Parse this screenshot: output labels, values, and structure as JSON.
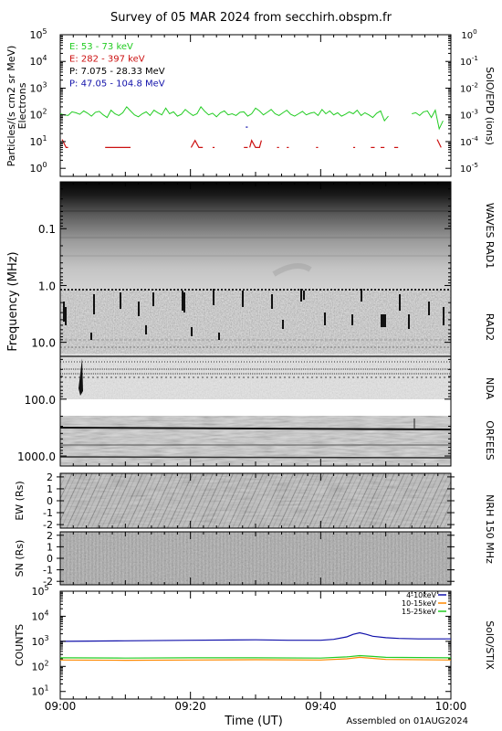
{
  "title": "Survey of 05 MAR 2024 from secchirh.obspm.fr",
  "footer": "Assembled on 01AUG2024",
  "chart_data": [
    {
      "type": "line",
      "panel": "SolO/EPD",
      "right_label": "SolO/EPD (ions)",
      "ylabel": "Particles/(s cm2 sr MeV)",
      "ylabel2": "Electrons",
      "ylog": true,
      "ylim": [
        0.5,
        100000
      ],
      "yticks": [
        "10^0",
        "10^1",
        "10^2",
        "10^3",
        "10^4",
        "10^5"
      ],
      "y2ticks": [
        "10^-5",
        "10^-4",
        "10^-3",
        "10^-2",
        "10^-1",
        "10^0"
      ],
      "legend": [
        {
          "text": "E: 53 - 73 keV",
          "color": "#22cc22"
        },
        {
          "text": "E: 282 - 397 keV",
          "color": "#cc1111"
        },
        {
          "text": "P: 7.075 - 28.33 MeV",
          "color": "#000000"
        },
        {
          "text": "P: 47.05 - 104.8 MeV",
          "color": "#1111aa"
        }
      ],
      "series": [
        {
          "name": "E: 53 - 73 keV",
          "color": "#22cc22",
          "x_start": 0,
          "x_step": 0.5,
          "values": [
            110,
            100,
            95,
            130,
            120,
            105,
            140,
            115,
            90,
            125,
            135,
            100,
            80,
            150,
            110,
            95,
            120,
            200,
            140,
            100,
            85,
            110,
            130,
            95,
            150,
            120,
            100,
            180,
            110,
            130,
            90,
            105,
            160,
            120,
            95,
            110,
            200,
            135,
            100,
            115,
            85,
            120,
            140,
            100,
            110,
            95,
            125,
            130,
            90,
            110,
            180,
            140,
            100,
            125,
            160,
            110,
            95,
            120,
            150,
            105,
            90,
            110,
            135,
            100,
            115,
            125,
            95,
            160,
            110,
            140,
            100,
            120,
            90,
            105,
            130,
            110,
            150,
            95,
            120,
            100,
            80,
            115,
            140,
            60,
            90,
            null,
            null,
            null,
            null,
            null,
            110,
            120,
            95,
            130,
            140,
            80,
            150,
            30,
            60
          ]
        },
        {
          "name": "E: 282 - 397 keV",
          "color": "#cc1111",
          "segments": [
            [
              [
                0.5,
                12
              ],
              [
                1.5,
                6
              ],
              [
                2.0,
                6
              ]
            ],
            [
              [
                11.5,
                6
              ],
              [
                18.0,
                6
              ]
            ],
            [
              [
                33.5,
                6
              ],
              [
                34.5,
                11
              ],
              [
                35.5,
                6
              ],
              [
                36.5,
                6
              ]
            ],
            [
              [
                39.0,
                6
              ],
              [
                39.5,
                6
              ]
            ],
            [
              [
                47.0,
                6
              ],
              [
                48.0,
                6
              ]
            ],
            [
              [
                48.5,
                6
              ],
              [
                49.0,
                11
              ],
              [
                50.0,
                6
              ],
              [
                51.0,
                6
              ],
              [
                51.5,
                11
              ]
            ],
            [
              [
                55.5,
                6
              ],
              [
                56.0,
                6
              ]
            ],
            [
              [
                58.0,
                6
              ],
              [
                58.5,
                6
              ]
            ],
            [
              [
                65.5,
                6
              ],
              [
                66.0,
                6
              ]
            ],
            [
              [
                75.0,
                6
              ],
              [
                75.5,
                6
              ]
            ],
            [
              [
                79.5,
                6
              ],
              [
                80.5,
                6
              ]
            ],
            [
              [
                82.0,
                6
              ],
              [
                83.0,
                6
              ]
            ],
            [
              [
                85.5,
                6
              ],
              [
                86.5,
                6
              ]
            ],
            [
              [
                96.5,
                12
              ],
              [
                97.5,
                6
              ]
            ]
          ]
        },
        {
          "name": "P: 47.05 - 104.8 MeV",
          "color": "#1111aa",
          "segments": [
            [
              [
                47.5,
                35
              ],
              [
                48.0,
                35
              ]
            ]
          ]
        }
      ]
    },
    {
      "type": "heatmap",
      "panel": "Radio dynamic spectrum",
      "ylabel": "Frequency (MHz)",
      "ylog": true,
      "ylim": [
        0.015,
        1500
      ],
      "yticks": [
        "0.1",
        "1.0",
        "10.0",
        "100.0",
        "1000.0"
      ],
      "right_labels": [
        "WAVES RAD1",
        "RAD2",
        "NDA",
        "ORFEES"
      ]
    },
    {
      "type": "heatmap",
      "panel": "NRH 150 MHz EW",
      "ylabel": "EW (Rs)",
      "ylim": [
        -2.3,
        2.3
      ],
      "yticks": [
        "-2",
        "-1",
        "0",
        "1",
        "2"
      ],
      "right_label": "NRH 150 MHz"
    },
    {
      "type": "heatmap",
      "panel": "NRH 150 MHz SN",
      "ylabel": "SN (Rs)",
      "ylim": [
        -2.3,
        2.3
      ],
      "yticks": [
        "-2",
        "-1",
        "0",
        "1",
        "2"
      ]
    },
    {
      "type": "line",
      "panel": "SolO/STIX",
      "ylabel": "COUNTS",
      "right_label": "SolO/STIX",
      "ylog": true,
      "ylim": [
        5,
        100000
      ],
      "yticks": [
        "10^1",
        "10^2",
        "10^3",
        "10^4",
        "10^5"
      ],
      "legend": [
        {
          "text": "4-10keV",
          "color": "#1111aa"
        },
        {
          "text": "10-15keV",
          "color": "#ff8800"
        },
        {
          "text": "15-25keV",
          "color": "#22cc22"
        }
      ],
      "series": [
        {
          "name": "4-10keV",
          "color": "#1111aa",
          "x": [
            0,
            10,
            20,
            30,
            35,
            40,
            42,
            44,
            45,
            46,
            47,
            48,
            50,
            52,
            55,
            60
          ],
          "values": [
            1000,
            1050,
            1100,
            1150,
            1100,
            1100,
            1200,
            1500,
            1900,
            2200,
            1900,
            1600,
            1400,
            1300,
            1250,
            1250
          ]
        },
        {
          "name": "10-15keV",
          "color": "#ff8800",
          "x": [
            0,
            10,
            20,
            30,
            40,
            44,
            46,
            48,
            50,
            60
          ],
          "values": [
            180,
            175,
            180,
            185,
            180,
            200,
            230,
            210,
            190,
            180
          ]
        },
        {
          "name": "15-25keV",
          "color": "#22cc22",
          "x": [
            0,
            10,
            20,
            30,
            40,
            44,
            46,
            48,
            50,
            60
          ],
          "values": [
            220,
            215,
            220,
            220,
            215,
            240,
            270,
            250,
            230,
            220
          ]
        }
      ]
    }
  ],
  "time_axis": {
    "xlabel": "Time (UT)",
    "ticks": [
      "09:00",
      "09:20",
      "09:40",
      "10:00"
    ],
    "xlim_minutes": [
      0,
      60
    ]
  }
}
